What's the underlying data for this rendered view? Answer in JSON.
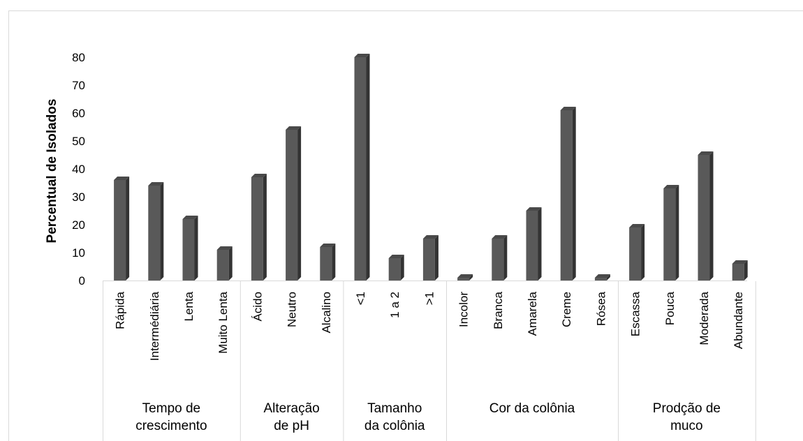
{
  "chart_data": {
    "type": "bar",
    "style": "3d-column",
    "title": "",
    "xlabel": "",
    "ylabel": "Percentual de Isolados",
    "ylim": [
      0,
      80
    ],
    "yticks": [
      0,
      10,
      20,
      30,
      40,
      50,
      60,
      70,
      80
    ],
    "grid": false,
    "bar_color": "#595959",
    "groups": [
      {
        "label": "Tempo de crescimento",
        "label_lines": [
          "Tempo de",
          "crescimento"
        ],
        "categories": [
          "Rápida",
          "Intermédiária",
          "Lenta",
          "Muito Lenta"
        ],
        "values": [
          36,
          34,
          22,
          11
        ]
      },
      {
        "label": "Alteração de pH",
        "label_lines": [
          "Alteração",
          "de pH"
        ],
        "categories": [
          "Ácido",
          "Neutro",
          "Alcalino"
        ],
        "values": [
          37,
          54,
          12
        ]
      },
      {
        "label": "Tamanho da colônia",
        "label_lines": [
          "Tamanho",
          "da colônia"
        ],
        "categories": [
          "<1",
          "1 a 2",
          ">1"
        ],
        "values": [
          80,
          8,
          15
        ]
      },
      {
        "label": "Cor da colônia",
        "label_lines": [
          "Cor da colônia"
        ],
        "categories": [
          "Incolor",
          "Branca",
          "Amarela",
          "Creme",
          "Rósea"
        ],
        "values": [
          1,
          15,
          25,
          61,
          1
        ]
      },
      {
        "label": "Prodção de muco",
        "label_lines": [
          "Prodção de",
          "muco"
        ],
        "categories": [
          "Escassa",
          "Pouca",
          "Moderada",
          "Abundante"
        ],
        "values": [
          19,
          33,
          45,
          6
        ]
      }
    ]
  }
}
